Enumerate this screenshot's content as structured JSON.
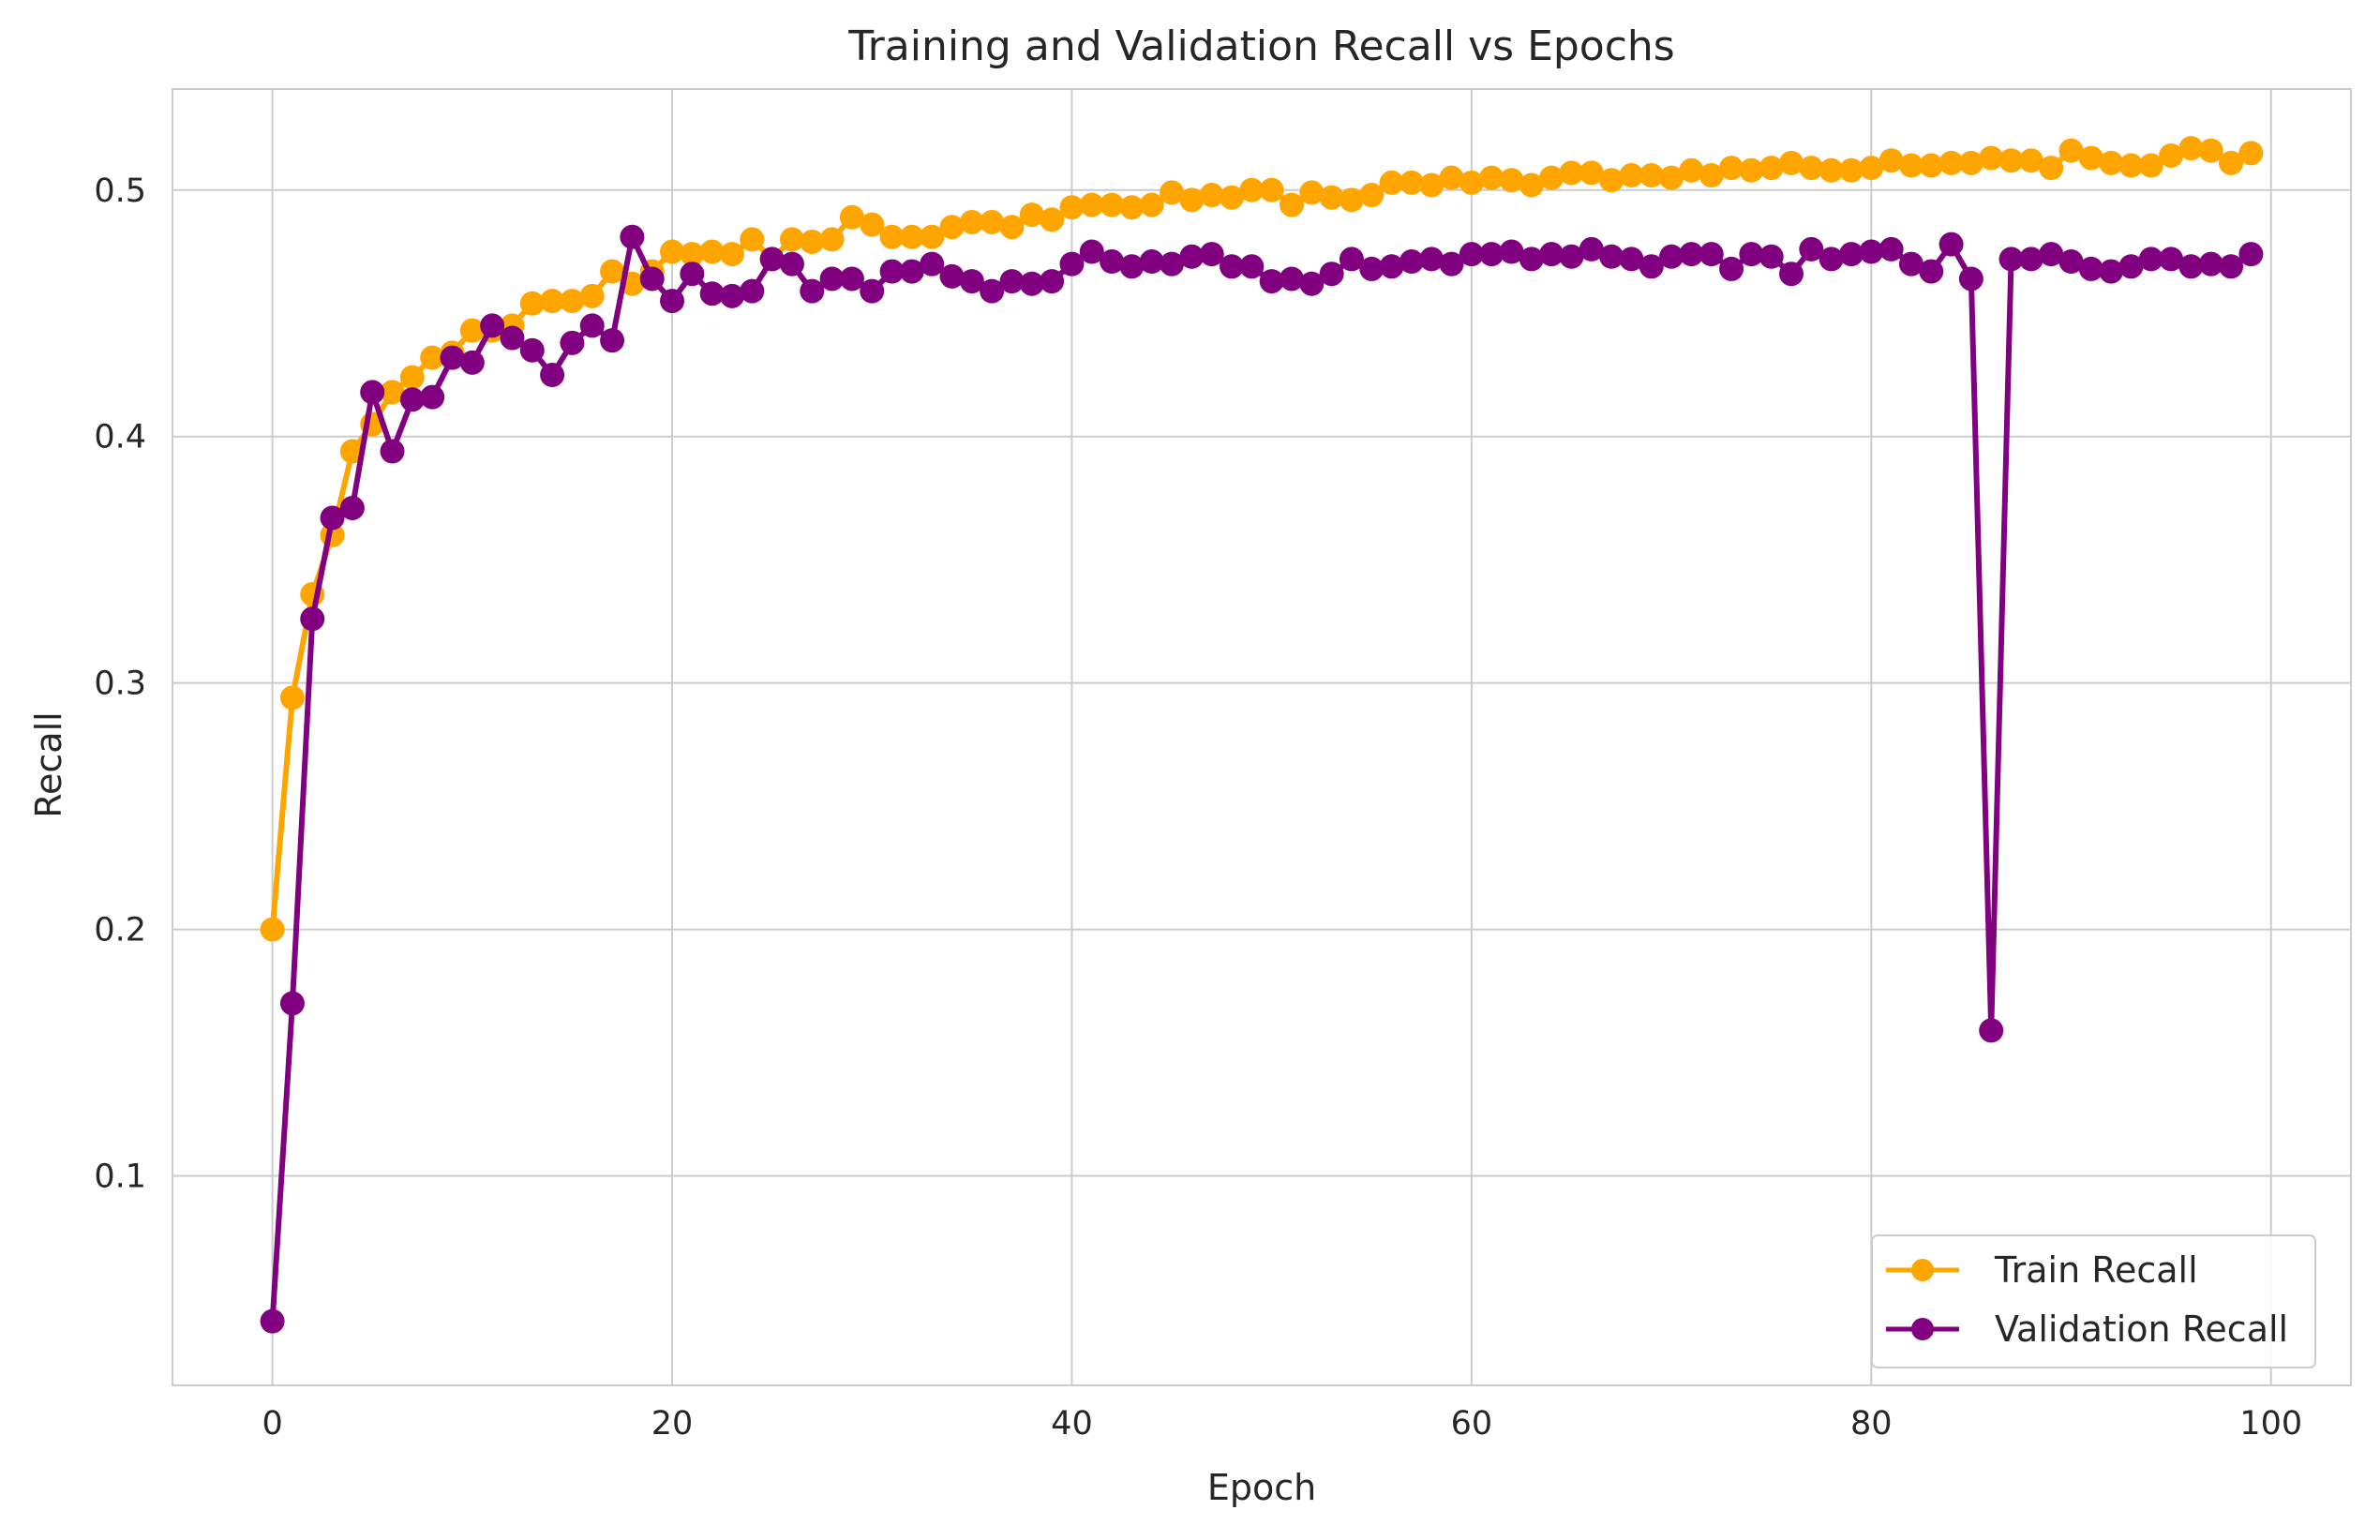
{
  "chart_data": {
    "type": "line",
    "title": "Training and Validation Recall vs Epochs",
    "xlabel": "Epoch",
    "ylabel": "Recall",
    "xlim": [
      -5,
      104
    ],
    "ylim": [
      0.015,
      0.541
    ],
    "xticks": [
      0,
      20,
      40,
      60,
      80,
      100
    ],
    "yticks": [
      0.1,
      0.2,
      0.3,
      0.4,
      0.5
    ],
    "grid": true,
    "legend_position": "bottom-right",
    "x": [
      0,
      1,
      2,
      3,
      4,
      5,
      6,
      7,
      8,
      9,
      10,
      11,
      12,
      13,
      14,
      15,
      16,
      17,
      18,
      19,
      20,
      21,
      22,
      23,
      24,
      25,
      26,
      27,
      28,
      29,
      30,
      31,
      32,
      33,
      34,
      35,
      36,
      37,
      38,
      39,
      40,
      41,
      42,
      43,
      44,
      45,
      46,
      47,
      48,
      49,
      50,
      51,
      52,
      53,
      54,
      55,
      56,
      57,
      58,
      59,
      60,
      61,
      62,
      63,
      64,
      65,
      66,
      67,
      68,
      69,
      70,
      71,
      72,
      73,
      74,
      75,
      76,
      77,
      78,
      79,
      80,
      81,
      82,
      83,
      84,
      85,
      86,
      87,
      88,
      89,
      90,
      91,
      92,
      93,
      94,
      95,
      96,
      97,
      98,
      99
    ],
    "series": [
      {
        "name": "Train Recall",
        "color": "#FFA500",
        "values": [
          0.2,
          0.294,
          0.336,
          0.36,
          0.394,
          0.405,
          0.418,
          0.424,
          0.432,
          0.434,
          0.443,
          0.443,
          0.445,
          0.454,
          0.455,
          0.455,
          0.457,
          0.467,
          0.462,
          0.467,
          0.475,
          0.474,
          0.475,
          0.474,
          0.48,
          0.472,
          0.48,
          0.479,
          0.48,
          0.489,
          0.486,
          0.481,
          0.481,
          0.481,
          0.485,
          0.487,
          0.487,
          0.485,
          0.49,
          0.488,
          0.493,
          0.494,
          0.494,
          0.493,
          0.494,
          0.499,
          0.496,
          0.498,
          0.497,
          0.5,
          0.5,
          0.494,
          0.499,
          0.497,
          0.496,
          0.498,
          0.503,
          0.503,
          0.502,
          0.505,
          0.503,
          0.505,
          0.504,
          0.502,
          0.505,
          0.507,
          0.507,
          0.504,
          0.506,
          0.506,
          0.505,
          0.508,
          0.506,
          0.509,
          0.508,
          0.509,
          0.511,
          0.509,
          0.508,
          0.508,
          0.509,
          0.512,
          0.51,
          0.51,
          0.511,
          0.511,
          0.513,
          0.512,
          0.512,
          0.509,
          0.516,
          0.513,
          0.511,
          0.51,
          0.51,
          0.514,
          0.517,
          0.516,
          0.511,
          0.515
        ]
      },
      {
        "name": "Validation Recall",
        "color": "#800080",
        "values": [
          0.041,
          0.17,
          0.326,
          0.367,
          0.371,
          0.418,
          0.394,
          0.415,
          0.416,
          0.432,
          0.43,
          0.445,
          0.44,
          0.435,
          0.425,
          0.438,
          0.445,
          0.439,
          0.481,
          0.464,
          0.455,
          0.466,
          0.458,
          0.457,
          0.459,
          0.472,
          0.47,
          0.459,
          0.464,
          0.464,
          0.459,
          0.467,
          0.467,
          0.47,
          0.465,
          0.463,
          0.459,
          0.463,
          0.462,
          0.463,
          0.47,
          0.475,
          0.471,
          0.469,
          0.471,
          0.47,
          0.473,
          0.474,
          0.469,
          0.469,
          0.463,
          0.464,
          0.462,
          0.466,
          0.472,
          0.468,
          0.469,
          0.471,
          0.472,
          0.47,
          0.474,
          0.474,
          0.475,
          0.472,
          0.474,
          0.473,
          0.476,
          0.473,
          0.472,
          0.469,
          0.473,
          0.474,
          0.474,
          0.468,
          0.474,
          0.473,
          0.466,
          0.476,
          0.472,
          0.474,
          0.475,
          0.476,
          0.47,
          0.467,
          0.478,
          0.464,
          0.159,
          0.472,
          0.472,
          0.474,
          0.471,
          0.468,
          0.467,
          0.469,
          0.472,
          0.472,
          0.469,
          0.47,
          0.469,
          0.474
        ]
      }
    ]
  }
}
